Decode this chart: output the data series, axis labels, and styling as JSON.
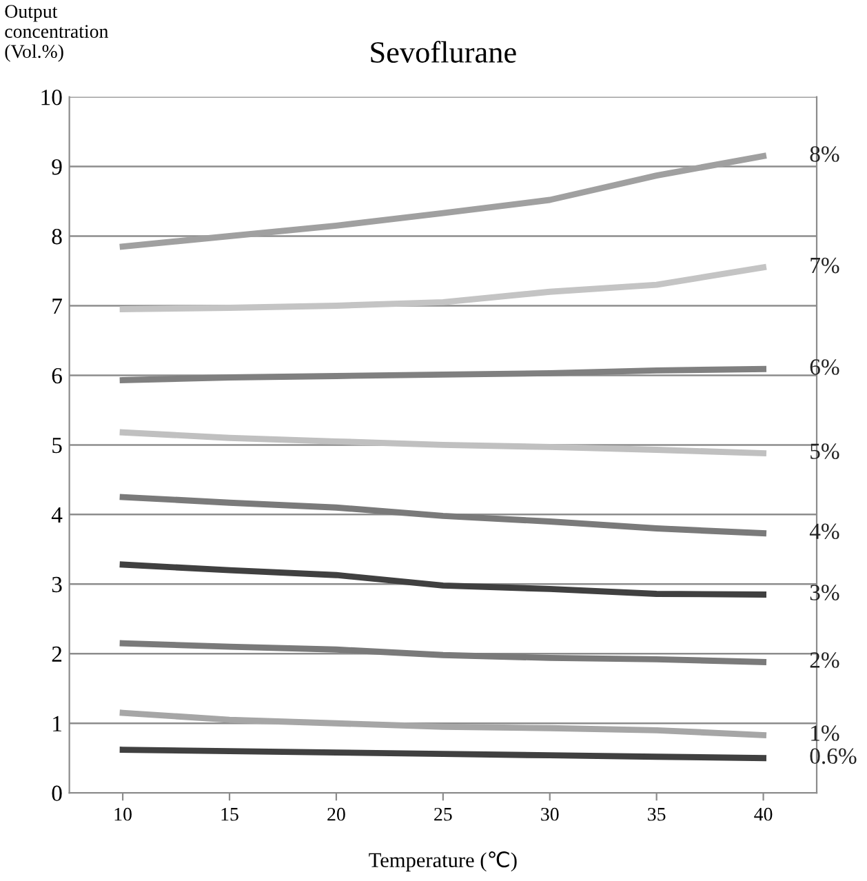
{
  "chart_data": {
    "type": "line",
    "title": "Sevoflurane",
    "xlabel": "Temperature (℃)",
    "ylabel": "Output\nconcentration\n(Vol.%)",
    "categories": [
      "10",
      "15",
      "20",
      "25",
      "30",
      "35",
      "40"
    ],
    "series": [
      {
        "name": "8%",
        "color": "#a0a0a0",
        "values": [
          7.85,
          8.0,
          8.15,
          8.33,
          8.52,
          8.87,
          9.15
        ]
      },
      {
        "name": "7%",
        "color": "#c4c4c4",
        "values": [
          6.95,
          6.97,
          7.0,
          7.05,
          7.2,
          7.3,
          7.55
        ]
      },
      {
        "name": "6%",
        "color": "#808080",
        "values": [
          5.93,
          5.97,
          5.99,
          6.01,
          6.03,
          6.07,
          6.09
        ]
      },
      {
        "name": "5%",
        "color": "#c0c0c0",
        "values": [
          5.18,
          5.1,
          5.05,
          5.0,
          4.97,
          4.93,
          4.88
        ]
      },
      {
        "name": "4%",
        "color": "#7a7a7a",
        "values": [
          4.25,
          4.17,
          4.1,
          3.98,
          3.9,
          3.8,
          3.73
        ]
      },
      {
        "name": "3%",
        "color": "#404040",
        "values": [
          3.28,
          3.2,
          3.13,
          2.98,
          2.93,
          2.86,
          2.85
        ]
      },
      {
        "name": "2%",
        "color": "#7a7a7a",
        "values": [
          2.15,
          2.1,
          2.06,
          1.98,
          1.94,
          1.92,
          1.88
        ]
      },
      {
        "name": "1%",
        "color": "#a6a6a6",
        "values": [
          1.15,
          1.05,
          1.0,
          0.95,
          0.93,
          0.9,
          0.83
        ]
      },
      {
        "name": "0.6%",
        "color": "#404040",
        "values": [
          0.62,
          0.6,
          0.58,
          0.56,
          0.54,
          0.52,
          0.5
        ]
      }
    ],
    "ylim": [
      0,
      10
    ],
    "yticks": [
      0,
      1,
      2,
      3,
      4,
      5,
      6,
      7,
      8,
      9,
      10
    ],
    "grid": "y",
    "legend": false,
    "marker": "none",
    "line_style": "solid"
  }
}
